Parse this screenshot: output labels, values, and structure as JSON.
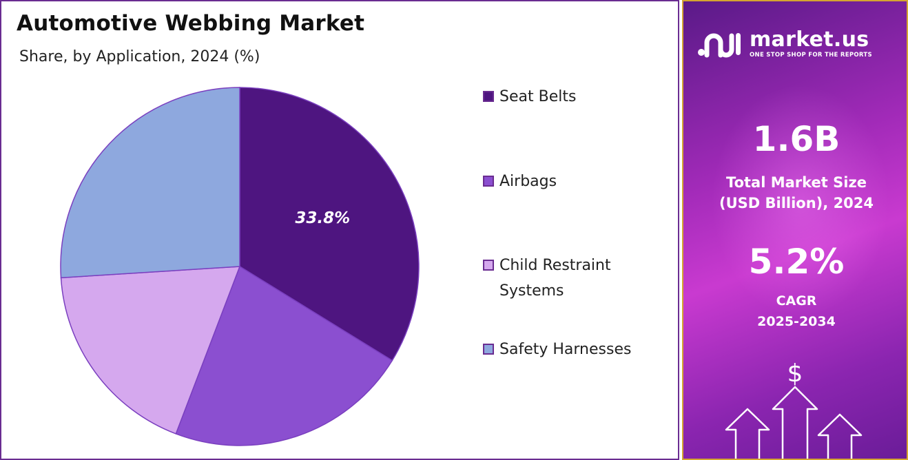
{
  "chart_data": {
    "type": "pie",
    "title": "Automotive Webbing Market",
    "subtitle": "Share, by Application, 2024 (%)",
    "categories": [
      "Seat Belts",
      "Airbags",
      "Child Restraint Systems",
      "Safety Harnesses"
    ],
    "values": [
      33.8,
      22.0,
      18.2,
      26.0
    ],
    "colors": [
      "#4e1580",
      "#8b4fd0",
      "#d5a8ee",
      "#8ea8de"
    ],
    "data_labels": [
      "33.8%",
      "",
      "",
      ""
    ],
    "legend_position": "right",
    "start_angle": "12 o'clock, clockwise"
  },
  "legend": {
    "items": [
      {
        "label_line1": "Seat Belts",
        "label_line2": ""
      },
      {
        "label_line1": "Airbags",
        "label_line2": ""
      },
      {
        "label_line1": "Child Restraint",
        "label_line2": "Systems"
      },
      {
        "label_line1": "Safety Harnesses",
        "label_line2": ""
      }
    ]
  },
  "info_panel": {
    "brand_name": "market.us",
    "brand_tagline": "ONE STOP SHOP FOR THE REPORTS",
    "brand_icon": "market-us-logo-icon",
    "market_size_value": "1.6B",
    "market_size_label_1": "Total Market Size",
    "market_size_label_2": "(USD Billion), 2024",
    "cagr_value": "5.2%",
    "cagr_label_1": "CAGR",
    "cagr_label_2": "2025-2034",
    "dollar_symbol": "$",
    "decor_icon": "growth-arrows-icon"
  }
}
